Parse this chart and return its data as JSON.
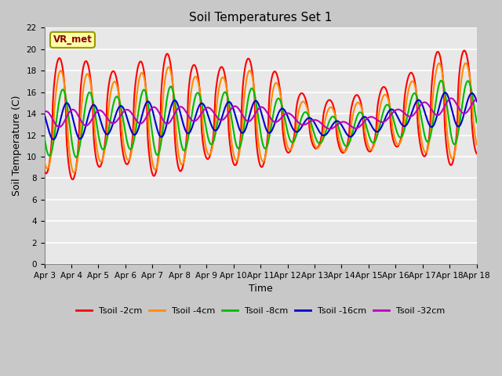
{
  "title": "Soil Temperatures Set 1",
  "xlabel": "Time",
  "ylabel": "Soil Temperature (C)",
  "ylim": [
    0,
    22
  ],
  "yticks": [
    0,
    2,
    4,
    6,
    8,
    10,
    12,
    14,
    16,
    18,
    20,
    22
  ],
  "xtick_labels": [
    "Apr 3",
    "Apr 4",
    "Apr 5",
    "Apr 6",
    "Apr 7",
    "Apr 8",
    "Apr 9",
    "Apr 10",
    "Apr 11",
    "Apr 12",
    "Apr 13",
    "Apr 14",
    "Apr 15",
    "Apr 16",
    "Apr 17",
    "Apr 18"
  ],
  "series_names": [
    "Tsoil -2cm",
    "Tsoil -4cm",
    "Tsoil -8cm",
    "Tsoil -16cm",
    "Tsoil -32cm"
  ],
  "series_colors": [
    "#FF0000",
    "#FF8C00",
    "#00BB00",
    "#0000CC",
    "#BB00BB"
  ],
  "series_lw": [
    1.5,
    1.5,
    1.5,
    1.5,
    1.5
  ],
  "annotation_text": "VR_met",
  "annotation_fg": "#8B0000",
  "annotation_bg": "#FFFFAA",
  "annotation_edge": "#999900",
  "fig_bg": "#C8C8C8",
  "ax_bg": "#E8E8E8",
  "grid_color": "#FFFFFF",
  "n_days": 16,
  "pts_per_day": 48
}
